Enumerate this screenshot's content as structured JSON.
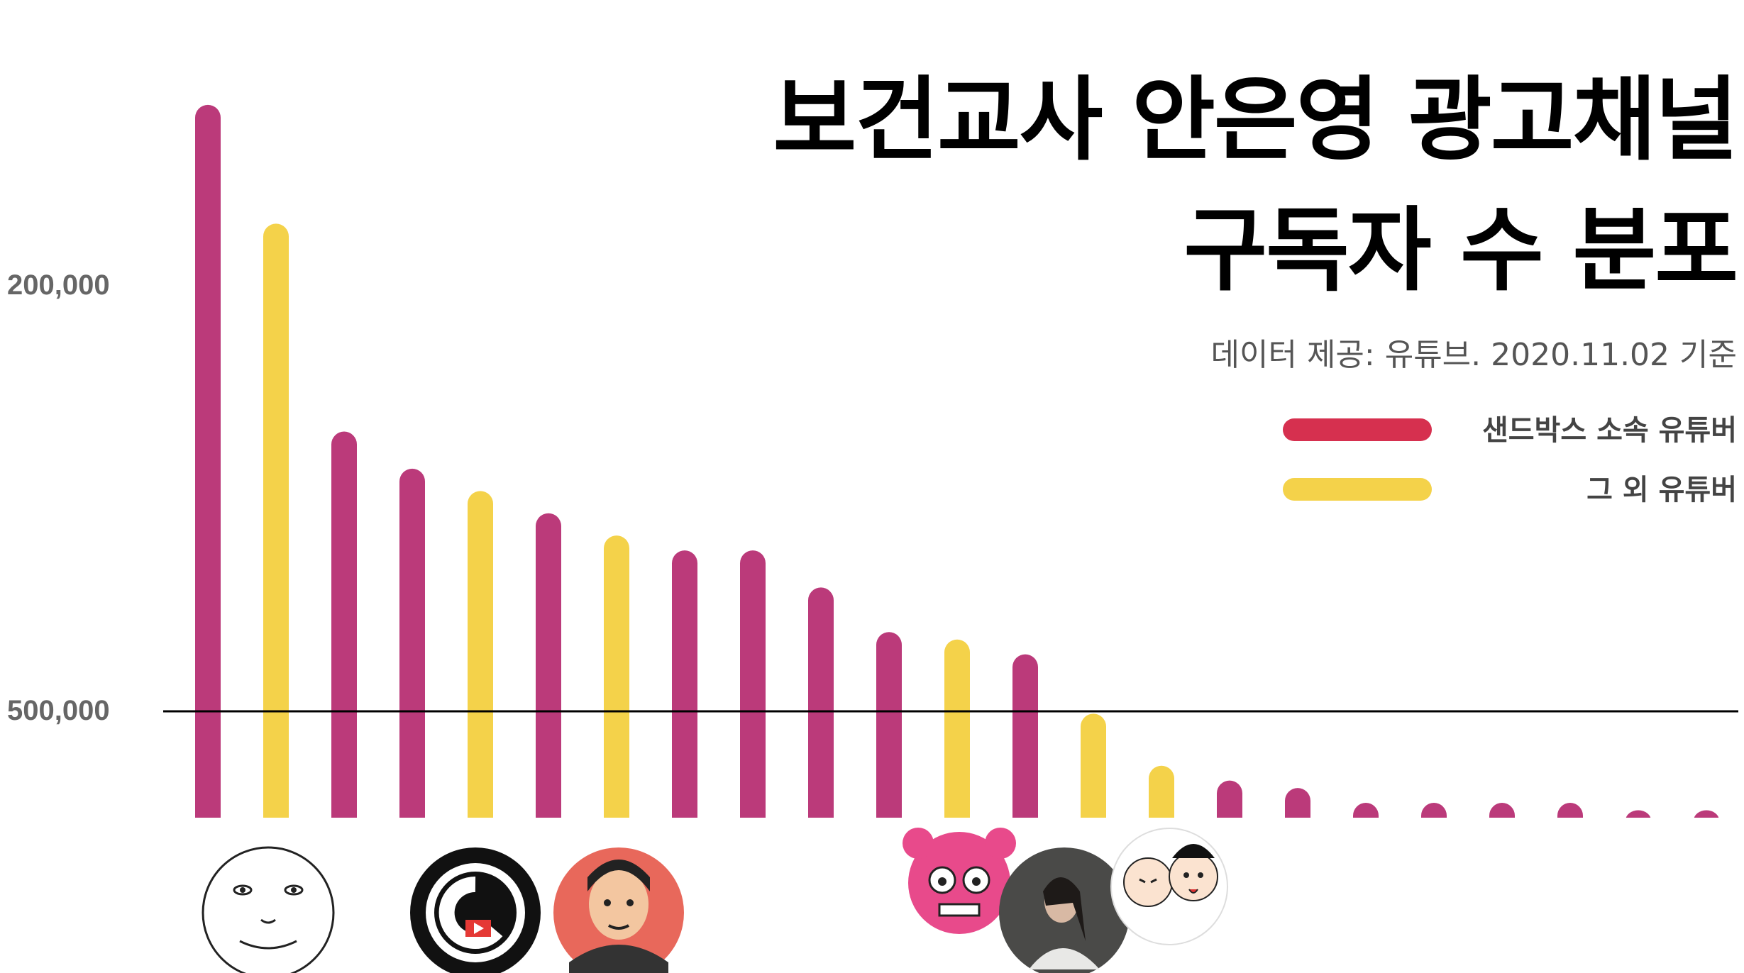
{
  "title_lines": [
    "보건교사 안은영 광고채널",
    "구독자 수 분포"
  ],
  "subtitle": "데이터 제공: 유튜브. 2020.11.02 기준",
  "legend": [
    {
      "label": "샌드박스 소속 유튜버",
      "color": "#d6304f"
    },
    {
      "label": "그 외 유튜버",
      "color": "#f4d24a"
    }
  ],
  "chart_data": {
    "type": "bar",
    "yticks": [
      "200,000",
      "500,000"
    ],
    "reference_line": 500000,
    "values": [
      0.96,
      0.8,
      0.52,
      0.47,
      0.44,
      0.41,
      0.38,
      0.36,
      0.36,
      0.31,
      0.25,
      0.24,
      0.22,
      0.14,
      0.07,
      0.05,
      0.04,
      0.02,
      0.02,
      0.02,
      0.02,
      0.01,
      0.01
    ],
    "groups": [
      "sandbox",
      "other",
      "sandbox",
      "sandbox",
      "other",
      "sandbox",
      "other",
      "sandbox",
      "sandbox",
      "sandbox",
      "sandbox",
      "other",
      "sandbox",
      "other",
      "other",
      "sandbox",
      "sandbox",
      "sandbox",
      "sandbox",
      "sandbox",
      "sandbox",
      "sandbox",
      "sandbox"
    ],
    "colors": {
      "sandbox": "#bb3a7a",
      "other": "#f4d24a"
    }
  },
  "avatars": [
    {
      "name": "moon-face-avatar",
      "bar_index": 1
    },
    {
      "name": "film-reel-movie-avatar",
      "bar_index": 4
    },
    {
      "name": "cartoon-man-avatar",
      "bar_index": 6
    },
    {
      "name": "pink-monster-avatar",
      "bar_index": 11
    },
    {
      "name": "woman-photo-avatar",
      "bar_index": 12
    },
    {
      "name": "cartoon-girls-avatar",
      "bar_index": 13
    }
  ]
}
